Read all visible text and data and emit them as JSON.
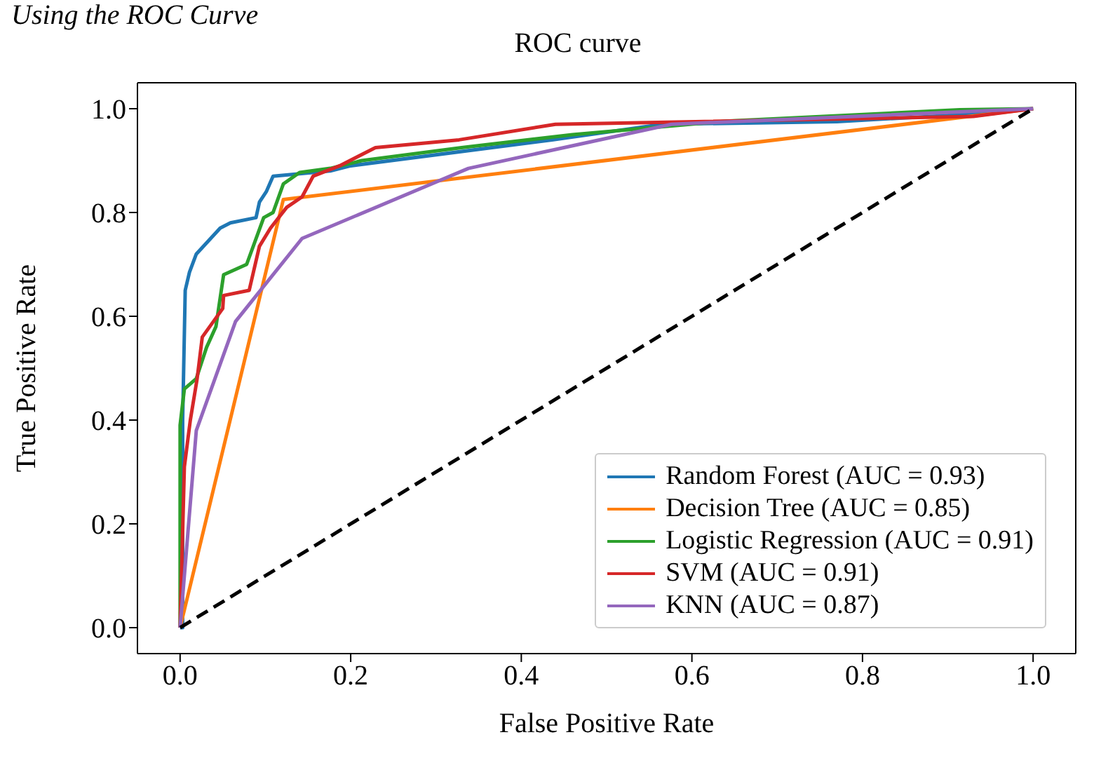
{
  "chart_data": {
    "type": "line",
    "title": "ROC curve",
    "xlabel": "False Positive Rate",
    "ylabel": "True Positive Rate",
    "annotations": [
      "Using the ROC Curve"
    ],
    "xlim": [
      -0.05,
      1.05
    ],
    "ylim": [
      -0.05,
      1.05
    ],
    "xticks": [
      {
        "value": 0,
        "label": "0.0"
      },
      0.2,
      0.4,
      0.6,
      0.8,
      {
        "value": 1,
        "label": "1.0"
      }
    ],
    "yticks": [
      {
        "value": 0,
        "label": "0.0"
      },
      0.2,
      0.4,
      0.6,
      0.8,
      {
        "value": 1,
        "label": "1.0"
      }
    ],
    "legend": "bottom right",
    "line_style": "solid",
    "series": [
      {
        "name": "Random Forest (AUC = 0.93)",
        "color": "#1f77b4",
        "x": [
          0,
          0.003,
          0.003,
          0.006,
          0.011,
          0.019,
          0.047,
          0.059,
          0.089,
          0.093,
          0.101,
          0.109,
          0.176,
          0.2,
          0.436,
          0.565,
          0.77,
          0.93,
          1
        ],
        "values": [
          0,
          0,
          0.4,
          0.65,
          0.685,
          0.72,
          0.77,
          0.78,
          0.79,
          0.82,
          0.84,
          0.87,
          0.88,
          0.89,
          0.94,
          0.97,
          0.975,
          0.99,
          1
        ]
      },
      {
        "name": "Decision Tree (AUC = 0.85)",
        "color": "#ff7f0e",
        "x": [
          0,
          0.121,
          1
        ],
        "values": [
          0,
          0.825,
          1
        ]
      },
      {
        "name": "Logistic Regression (AUC = 0.91)",
        "color": "#2ca02c",
        "x": [
          0,
          0,
          0.005,
          0.019,
          0.031,
          0.042,
          0.051,
          0.078,
          0.098,
          0.109,
          0.121,
          0.14,
          0.176,
          0.213,
          0.33,
          0.46,
          0.64,
          0.914,
          1
        ],
        "values": [
          0,
          0.39,
          0.46,
          0.48,
          0.54,
          0.58,
          0.68,
          0.7,
          0.79,
          0.8,
          0.855,
          0.877,
          0.885,
          0.9,
          0.925,
          0.95,
          0.976,
          0.998,
          1
        ]
      },
      {
        "name": "SVM (AUC = 0.91)",
        "color": "#d62728",
        "x": [
          0,
          0.005,
          0.012,
          0.02,
          0.026,
          0.05,
          0.051,
          0.081,
          0.093,
          0.106,
          0.125,
          0.143,
          0.156,
          0.187,
          0.229,
          0.327,
          0.44,
          0.93,
          1
        ],
        "values": [
          0,
          0.31,
          0.4,
          0.48,
          0.56,
          0.615,
          0.64,
          0.65,
          0.735,
          0.77,
          0.81,
          0.83,
          0.87,
          0.89,
          0.925,
          0.94,
          0.97,
          0.985,
          1
        ]
      },
      {
        "name": "KNN (AUC = 0.87)",
        "color": "#9467bd",
        "x": [
          0,
          0.019,
          0.065,
          0.143,
          0.338,
          0.576,
          1
        ],
        "values": [
          0,
          0.38,
          0.59,
          0.75,
          0.885,
          0.97,
          1
        ]
      },
      {
        "color": "#000000",
        "line_style": "dashed",
        "x": [
          0,
          1
        ],
        "values": [
          0,
          1
        ]
      }
    ]
  }
}
